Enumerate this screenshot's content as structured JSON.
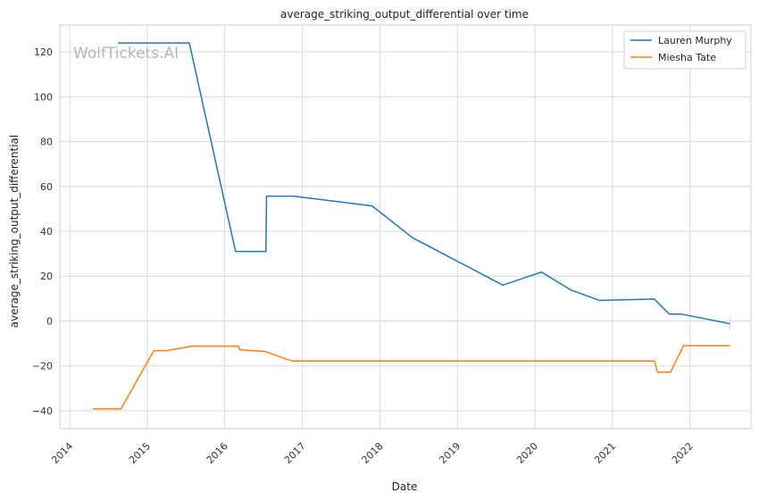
{
  "chart_data": {
    "type": "line",
    "title": "average_striking_output_differential over time",
    "xlabel": "Date",
    "ylabel": "average_striking_output_differential",
    "watermark": "WolfTickets.AI",
    "xlim": [
      "2013-11-15",
      "2022-10-15"
    ],
    "ylim": [
      -48,
      132
    ],
    "x_ticks": [
      "2014-01-01",
      "2015-01-01",
      "2016-01-01",
      "2017-01-01",
      "2018-01-01",
      "2019-01-01",
      "2020-01-01",
      "2021-01-01",
      "2022-01-01"
    ],
    "x_tick_labels": [
      "2014",
      "2015",
      "2016",
      "2017",
      "2018",
      "2019",
      "2020",
      "2021",
      "2022"
    ],
    "y_ticks": [
      120,
      100,
      80,
      60,
      40,
      20,
      0,
      -20,
      -40
    ],
    "y_tick_labels": [
      "120",
      "100",
      "80",
      "60",
      "40",
      "20",
      "0",
      "−20",
      "−40"
    ],
    "grid": true,
    "legend_position": "top-right",
    "series": [
      {
        "name": "Lauren Murphy",
        "color": "#1f77b4",
        "points": [
          [
            "2014-08-16",
            124
          ],
          [
            "2015-07-18",
            124
          ],
          [
            "2016-02-21",
            31
          ],
          [
            "2016-07-13",
            31
          ],
          [
            "2016-07-16",
            55.7
          ],
          [
            "2016-11-19",
            55.7
          ],
          [
            "2017-11-25",
            51.3
          ],
          [
            "2018-06-01",
            37.3
          ],
          [
            "2019-08-03",
            16
          ],
          [
            "2020-02-01",
            21.8
          ],
          [
            "2020-06-20",
            13.8
          ],
          [
            "2020-11-01",
            9.2
          ],
          [
            "2021-07-17",
            9.8
          ],
          [
            "2021-09-25",
            3.1
          ],
          [
            "2021-11-20",
            3.1
          ],
          [
            "2022-07-09",
            -1.2
          ]
        ]
      },
      {
        "name": "Miesha Tate",
        "color": "#ff7f0e",
        "points": [
          [
            "2014-04-19",
            -39.2
          ],
          [
            "2014-08-30",
            -39.2
          ],
          [
            "2015-02-01",
            -13.2
          ],
          [
            "2015-04-01",
            -13.2
          ],
          [
            "2015-08-01",
            -11.2
          ],
          [
            "2016-03-05",
            -11.2
          ],
          [
            "2016-03-12",
            -12.8
          ],
          [
            "2016-07-09",
            -13.6
          ],
          [
            "2016-11-12",
            -17.8
          ],
          [
            "2021-07-17",
            -17.8
          ],
          [
            "2021-08-01",
            -22.8
          ],
          [
            "2021-10-01",
            -22.8
          ],
          [
            "2021-12-01",
            -11
          ],
          [
            "2022-07-09",
            -11
          ]
        ]
      }
    ]
  }
}
